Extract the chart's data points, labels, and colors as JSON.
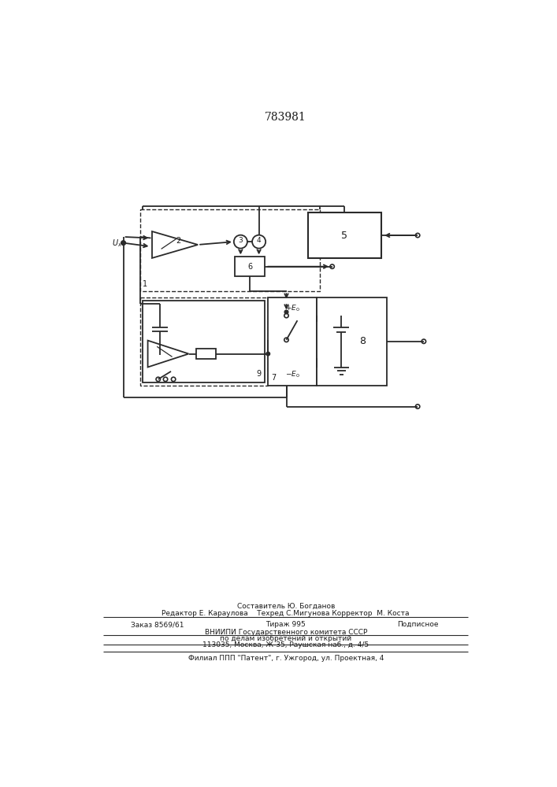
{
  "title": "783981",
  "line_color": "#2a2a2a",
  "text_color": "#1a1a1a",
  "fig_width": 7.07,
  "fig_height": 10.0,
  "footer_line1": "Составитель Ю. Богданов",
  "footer_line2": "Редактор Е. Караулова    Техред С.Мигунова Корректор  М. Коста",
  "footer_line3a": "Заказ 8569/61",
  "footer_line3b": "Тираж 995",
  "footer_line3c": "Подписное",
  "footer_line4": "ВНИИПИ Государственного комитета СССР",
  "footer_line5": "по делам изобретений и открытий",
  "footer_line6": "113035, Москва, Ж-35, Раушская наб., д. 4/5",
  "footer_line7": "Филиал ППП \"Патент\", г. Ужгород, ул. Проектная, 4"
}
